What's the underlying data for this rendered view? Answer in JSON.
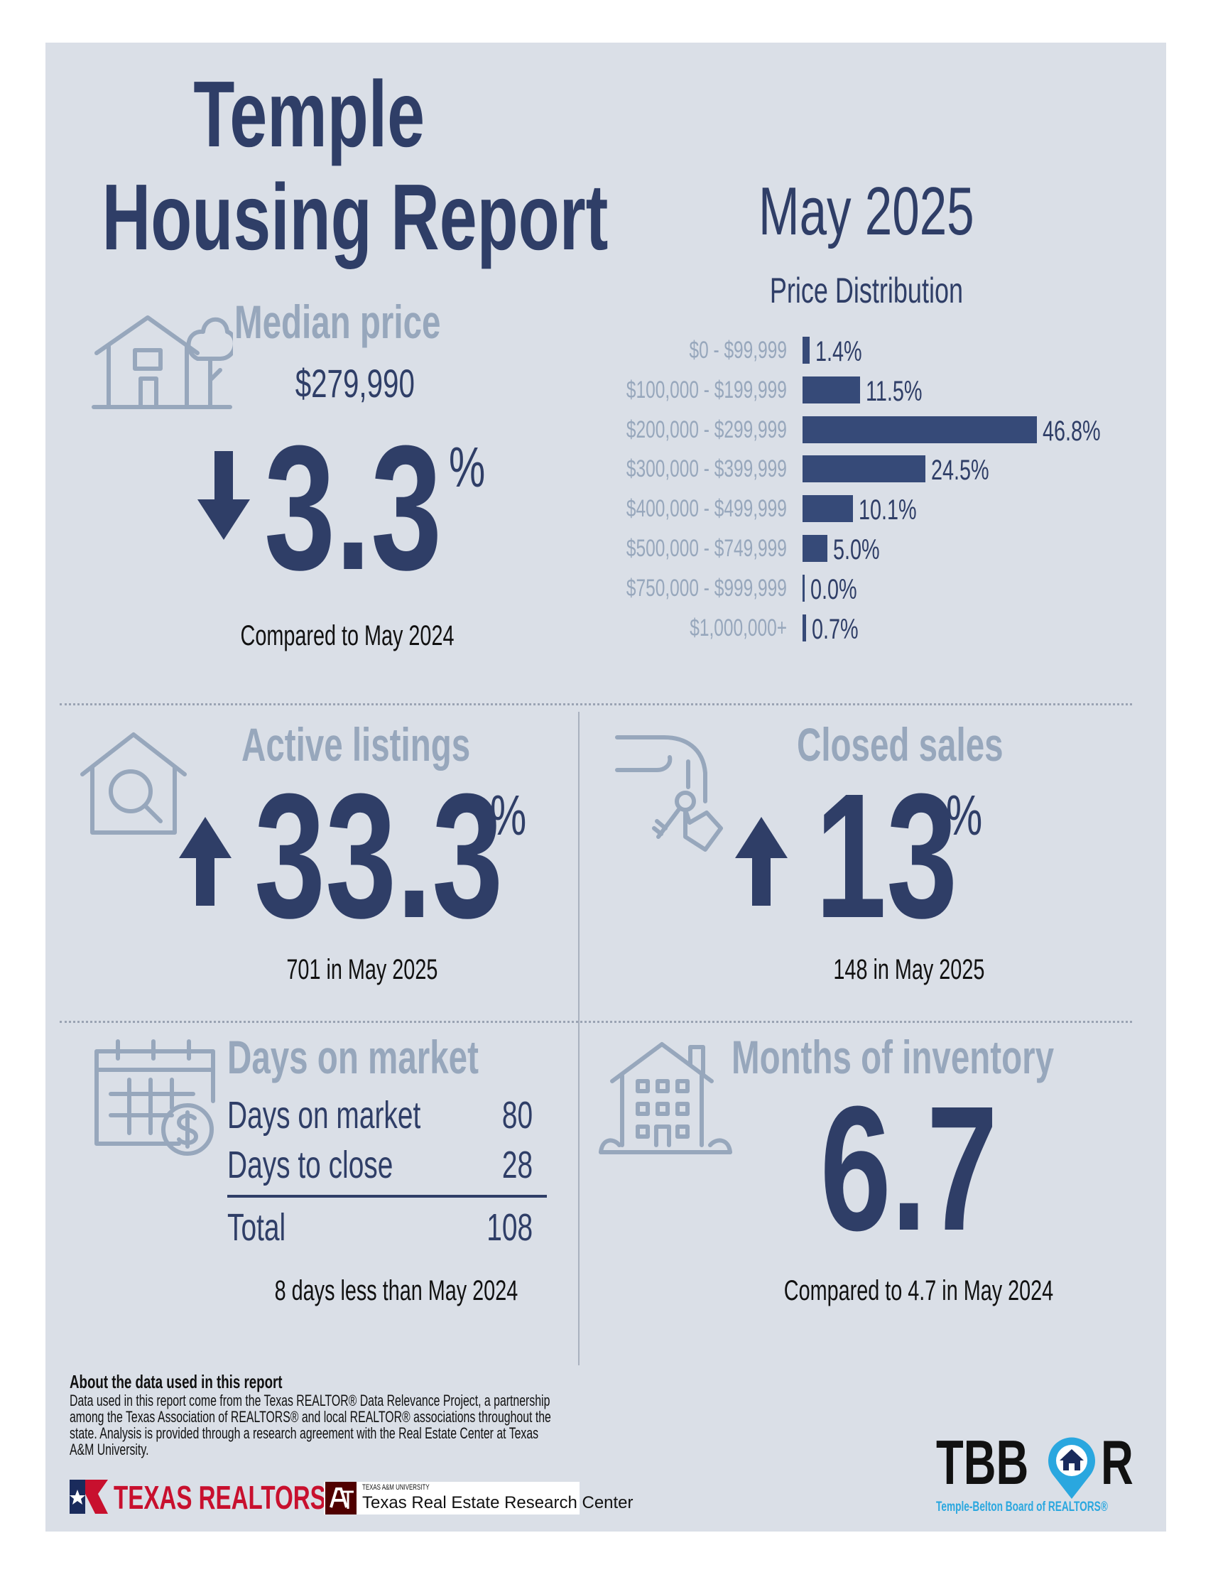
{
  "header": {
    "title_line1": "Temple",
    "title_line2": "Housing Report",
    "date": "May 2025"
  },
  "median_price": {
    "label": "Median price",
    "value": "$279,990",
    "change": "3.3",
    "change_unit": "%",
    "direction": "down",
    "caption": "Compared to May 2024",
    "icon": "house-tree-icon"
  },
  "price_distribution": {
    "title": "Price Distribution",
    "rows": [
      {
        "range": "$0 - $99,999",
        "pct": 1.4,
        "label": "1.4%"
      },
      {
        "range": "$100,000 - $199,999",
        "pct": 11.5,
        "label": "11.5%"
      },
      {
        "range": "$200,000 - $299,999",
        "pct": 46.8,
        "label": "46.8%"
      },
      {
        "range": "$300,000 - $399,999",
        "pct": 24.5,
        "label": "24.5%"
      },
      {
        "range": "$400,000 - $499,999",
        "pct": 10.1,
        "label": "10.1%"
      },
      {
        "range": "$500,000 - $749,999",
        "pct": 5.0,
        "label": "5.0%"
      },
      {
        "range": "$750,000 - $999,999",
        "pct": 0.0,
        "label": "0.0%"
      },
      {
        "range": "$1,000,000+",
        "pct": 0.7,
        "label": "0.7%"
      }
    ]
  },
  "active_listings": {
    "label": "Active listings",
    "change": "33.3",
    "change_unit": "%",
    "direction": "up",
    "caption": "701 in May 2025",
    "icon": "house-search-icon"
  },
  "closed_sales": {
    "label": "Closed sales",
    "change": "13",
    "change_unit": "%",
    "direction": "up",
    "caption": "148 in May 2025",
    "icon": "hand-keys-icon"
  },
  "days_on_market": {
    "label": "Days on market",
    "rows": [
      {
        "label": "Days on market",
        "value": "80"
      },
      {
        "label": "Days to close",
        "value": "28"
      }
    ],
    "total_label": "Total",
    "total_value": "108",
    "caption": "8 days less than May 2024",
    "icon": "calendar-dollar-icon"
  },
  "months_inventory": {
    "label": "Months of inventory",
    "value": "6.7",
    "caption": "Compared to 4.7 in May 2024",
    "icon": "apartment-building-icon"
  },
  "footer": {
    "about_title": "About the data used in this report",
    "about_body": "Data used in this report come from the Texas REALTOR® Data Relevance Project, a partnership among the Texas Association of REALTORS® and local REALTOR® associations throughout the state. Analysis is provided through a research agreement with the Real Estate Center at Texas A&M University.",
    "logo_texas_realtors": "TEXAS REALTORS",
    "logo_tamu_small": "TEXAS A&M UNIVERSITY",
    "logo_tamu_main": "Texas Real Estate Research Center",
    "logo_tbbor": "TBB",
    "logo_tbbor_r": "R",
    "logo_tbbor_sub": "Temple-Belton Board of REALTORS®"
  },
  "colors": {
    "navy": "#2f3e67",
    "muted": "#97a7bc",
    "panel": "#dadfe7",
    "bar": "#364a78",
    "tbbor_blue": "#2aa7df",
    "texas_red": "#c8102e",
    "tamu_maroon": "#500000"
  }
}
